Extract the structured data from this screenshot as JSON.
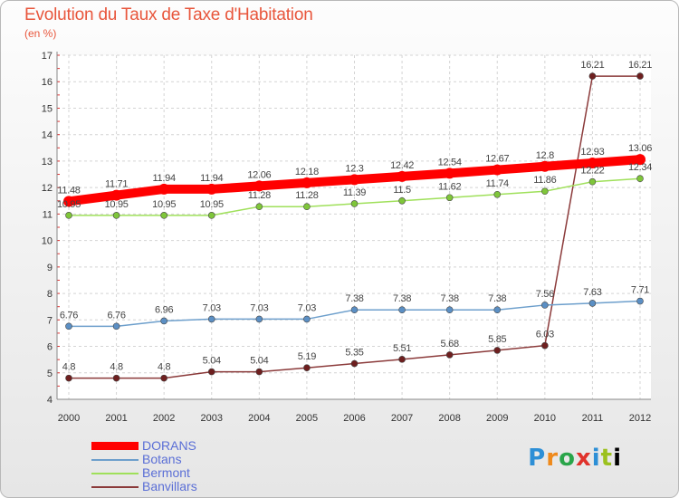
{
  "title": "Evolution du Taux de Taxe d'Habitation",
  "subtitle": "(en %)",
  "logo_text": "Proxiti",
  "chart_data": {
    "type": "line",
    "title": "Evolution du Taux de Taxe d'Habitation",
    "ylabel": "(en %)",
    "x": [
      "2000",
      "2001",
      "2002",
      "2003",
      "2004",
      "2005",
      "2006",
      "2007",
      "2008",
      "2009",
      "2010",
      "2011",
      "2012"
    ],
    "ylim": [
      4,
      17
    ],
    "yticks": [
      4,
      5,
      6,
      7,
      8,
      9,
      10,
      11,
      12,
      13,
      14,
      15,
      16,
      17
    ],
    "grid": true,
    "legend_position": "bottom-left",
    "series": [
      {
        "name": "DORANS",
        "color": "#ff0000",
        "marker_color": "#ff0000",
        "values": [
          11.48,
          11.71,
          11.94,
          11.94,
          12.06,
          12.18,
          12.3,
          12.42,
          12.54,
          12.67,
          12.8,
          12.93,
          13.06
        ],
        "labels": [
          "11.48",
          "11.71",
          "11.94",
          "11.94",
          "12.06",
          "12.18",
          "12.3",
          "12.42",
          "12.54",
          "12.67",
          "12.8",
          "12.93",
          "13.06"
        ]
      },
      {
        "name": "Botans",
        "color": "#6d9fcc",
        "marker_color": "#5b8fc4",
        "values": [
          6.76,
          6.76,
          6.96,
          7.03,
          7.03,
          7.03,
          7.38,
          7.38,
          7.38,
          7.38,
          7.56,
          7.63,
          7.71
        ],
        "labels": [
          "6.76",
          "6.76",
          "6.96",
          "7.03",
          "7.03",
          "7.03",
          "7.38",
          "7.38",
          "7.38",
          "7.38",
          "7.56",
          "7.63",
          "7.71"
        ]
      },
      {
        "name": "Bermont",
        "color": "#9fe05a",
        "marker_color": "#7fc63a",
        "values": [
          10.95,
          10.95,
          10.95,
          10.95,
          11.28,
          11.28,
          11.39,
          11.5,
          11.62,
          11.74,
          11.86,
          12.22,
          12.34
        ],
        "labels": [
          "10.95",
          "10.95",
          "10.95",
          "10.95",
          "11.28",
          "11.28",
          "11.39",
          "11.5",
          "11.62",
          "11.74",
          "11.86",
          "12.22",
          "12.34"
        ]
      },
      {
        "name": "Banvillars",
        "color": "#8b3a3a",
        "marker_color": "#6e1f1f",
        "values": [
          4.8,
          4.8,
          4.8,
          5.04,
          5.04,
          5.19,
          5.35,
          5.51,
          5.68,
          5.85,
          6.03,
          16.21,
          16.21
        ],
        "labels": [
          "4.8",
          "4.8",
          "4.8",
          "5.04",
          "5.04",
          "5.19",
          "5.35",
          "5.51",
          "5.68",
          "5.85",
          "6.03",
          "16.21",
          "16.21"
        ]
      }
    ]
  }
}
